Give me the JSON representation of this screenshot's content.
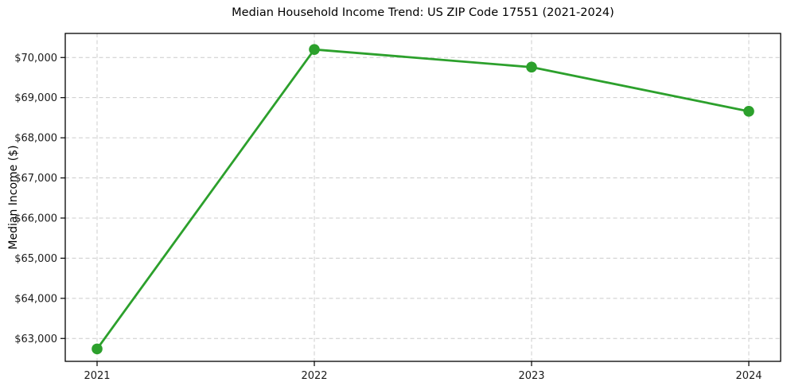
{
  "chart_data": {
    "type": "line",
    "title": "Median Household Income Trend: US ZIP Code 17551 (2021-2024)",
    "xlabel": "",
    "ylabel": "Median Income ($)",
    "x": [
      2021,
      2022,
      2023,
      2024
    ],
    "xtick_labels": [
      "2021",
      "2022",
      "2023",
      "2024"
    ],
    "series": [
      {
        "name": "median-household-income",
        "values": [
          62740,
          70200,
          69760,
          68660
        ],
        "color": "#2ca02c",
        "marker": "circle"
      }
    ],
    "ylim": [
      62430,
      70600
    ],
    "yticks": [
      63000,
      64000,
      65000,
      66000,
      67000,
      68000,
      69000,
      70000
    ],
    "ytick_labels": [
      "$63,000",
      "$64,000",
      "$65,000",
      "$66,000",
      "$67,000",
      "$68,000",
      "$69,000",
      "$70,000"
    ],
    "grid": true,
    "grid_style": "dashed",
    "grid_color": "#cccccc",
    "axis_color": "#000000",
    "tick_label_color": "#1a1a1a",
    "background": "#ffffff",
    "legend_position": "none"
  }
}
